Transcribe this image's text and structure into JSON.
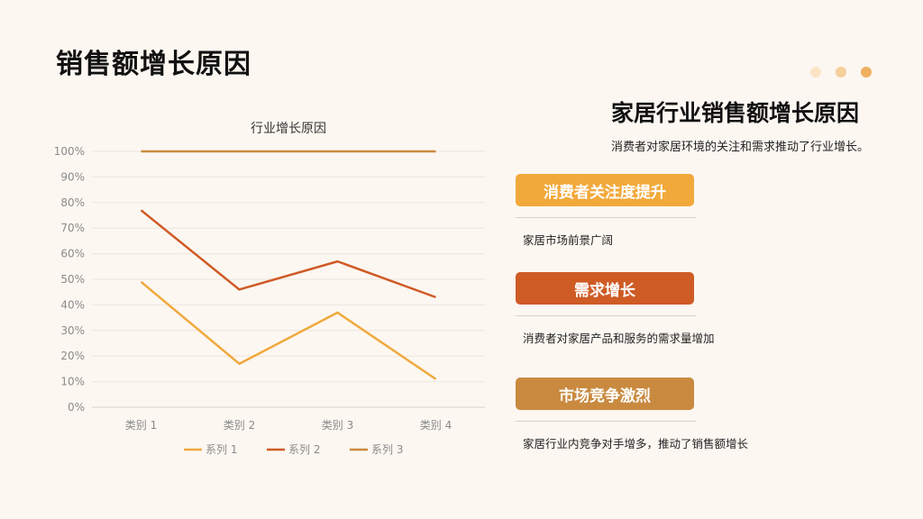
{
  "page": {
    "title": "销售额增长原因"
  },
  "decor": {
    "dot_colors": [
      "#fbe3c6",
      "#f6cf9a",
      "#efb160"
    ]
  },
  "chart_data": {
    "type": "line",
    "title": "行业增长原因",
    "categories": [
      "类别 1",
      "类别 2",
      "类别 3",
      "类别 4"
    ],
    "ylim": [
      0,
      1
    ],
    "yticks": [
      "0%",
      "10%",
      "20%",
      "30%",
      "40%",
      "50%",
      "60%",
      "70%",
      "80%",
      "90%",
      "100%"
    ],
    "grid": true,
    "legend_position": "bottom",
    "series": [
      {
        "name": "系列 1",
        "color": "#f0a93c",
        "values": [
          0.49,
          0.17,
          0.37,
          0.11
        ]
      },
      {
        "name": "系列 2",
        "color": "#cf5b25",
        "values": [
          0.77,
          0.46,
          0.57,
          0.43
        ]
      },
      {
        "name": "系列 3",
        "color": "#c98a40",
        "values": [
          1.0,
          1.0,
          1.0,
          1.0
        ]
      }
    ]
  },
  "right": {
    "title": "家居行业销售额增长原因",
    "subtitle": "消费者对家居环境的关注和需求推动了行业增长。",
    "cards": [
      {
        "label": "消费者关注度提升",
        "color": "#f2a93b",
        "desc": "家居市场前景广阔"
      },
      {
        "label": "需求增长",
        "color": "#cf5b25",
        "desc": "消费者对家居产品和服务的需求量增加"
      },
      {
        "label": "市场竞争激烈",
        "color": "#c98a40",
        "desc": "家居行业内竞争对手增多，推动了销售额增长"
      }
    ]
  }
}
